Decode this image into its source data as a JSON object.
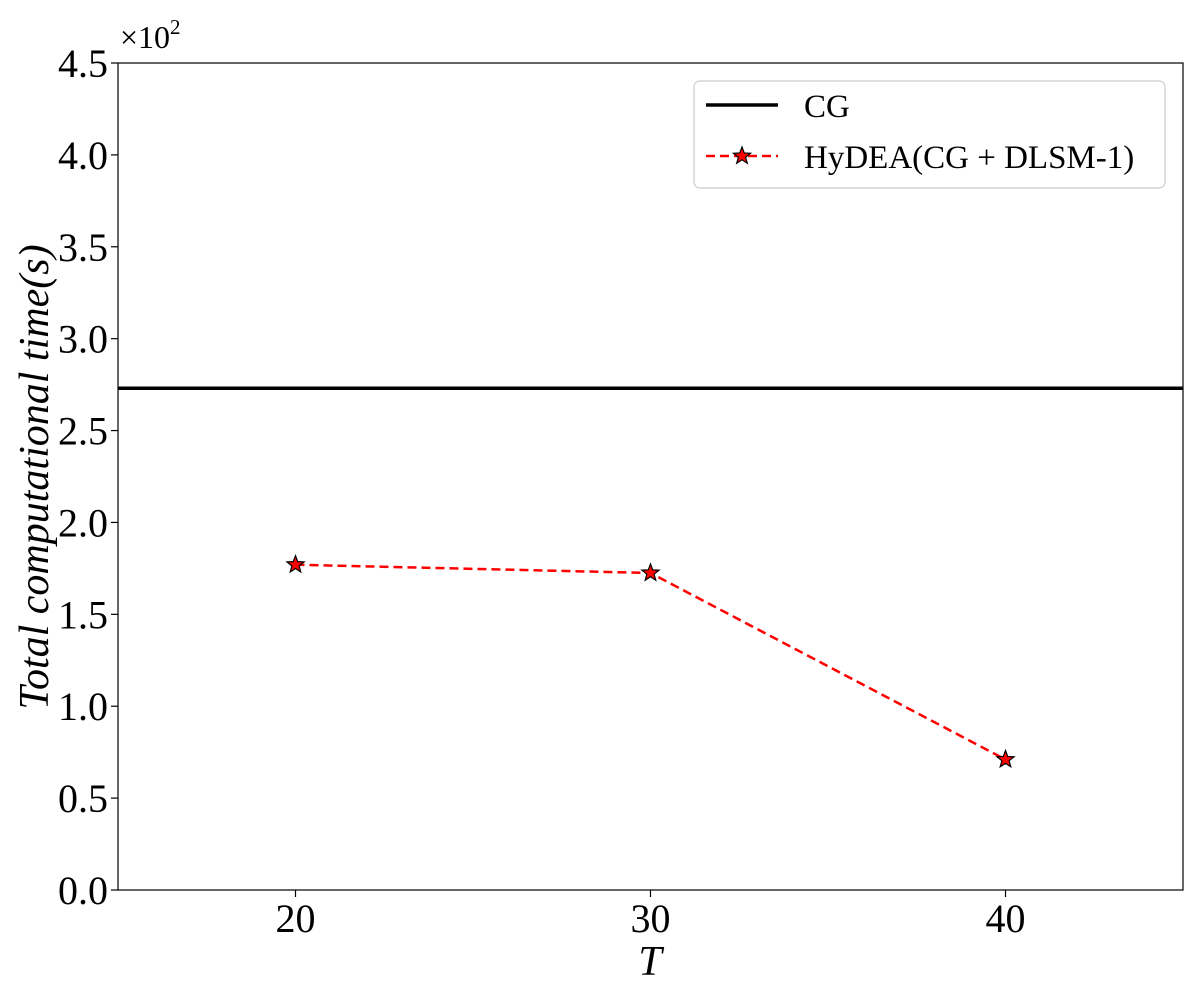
{
  "chart_data": {
    "type": "line",
    "xlabel": "T",
    "ylabel": "Total computational time(s)",
    "y_multiplier": {
      "base": "×10",
      "exponent": "2"
    },
    "xlim": [
      15,
      45
    ],
    "ylim": [
      0,
      4.5
    ],
    "x_ticks": [
      "20",
      "30",
      "40"
    ],
    "x_tick_values": [
      20,
      30,
      40
    ],
    "y_ticks": [
      "0.0",
      "0.5",
      "1.0",
      "1.5",
      "2.0",
      "2.5",
      "3.0",
      "3.5",
      "4.0",
      "4.5"
    ],
    "y_tick_values": [
      0,
      0.5,
      1.0,
      1.5,
      2.0,
      2.5,
      3.0,
      3.5,
      4.0,
      4.5
    ],
    "grid": false,
    "legend_position": "top-right",
    "series": [
      {
        "name": "CG",
        "style": "solid",
        "color": "#000000",
        "kind": "horizontal-line",
        "y": 2.73
      },
      {
        "name": "HyDEA(CG + DLSM-1)",
        "style": "dashed",
        "color": "#ff0000",
        "marker": "star",
        "marker_color": "#ff0000",
        "x": [
          20,
          30,
          40
        ],
        "y": [
          1.77,
          1.725,
          0.71
        ]
      }
    ]
  }
}
